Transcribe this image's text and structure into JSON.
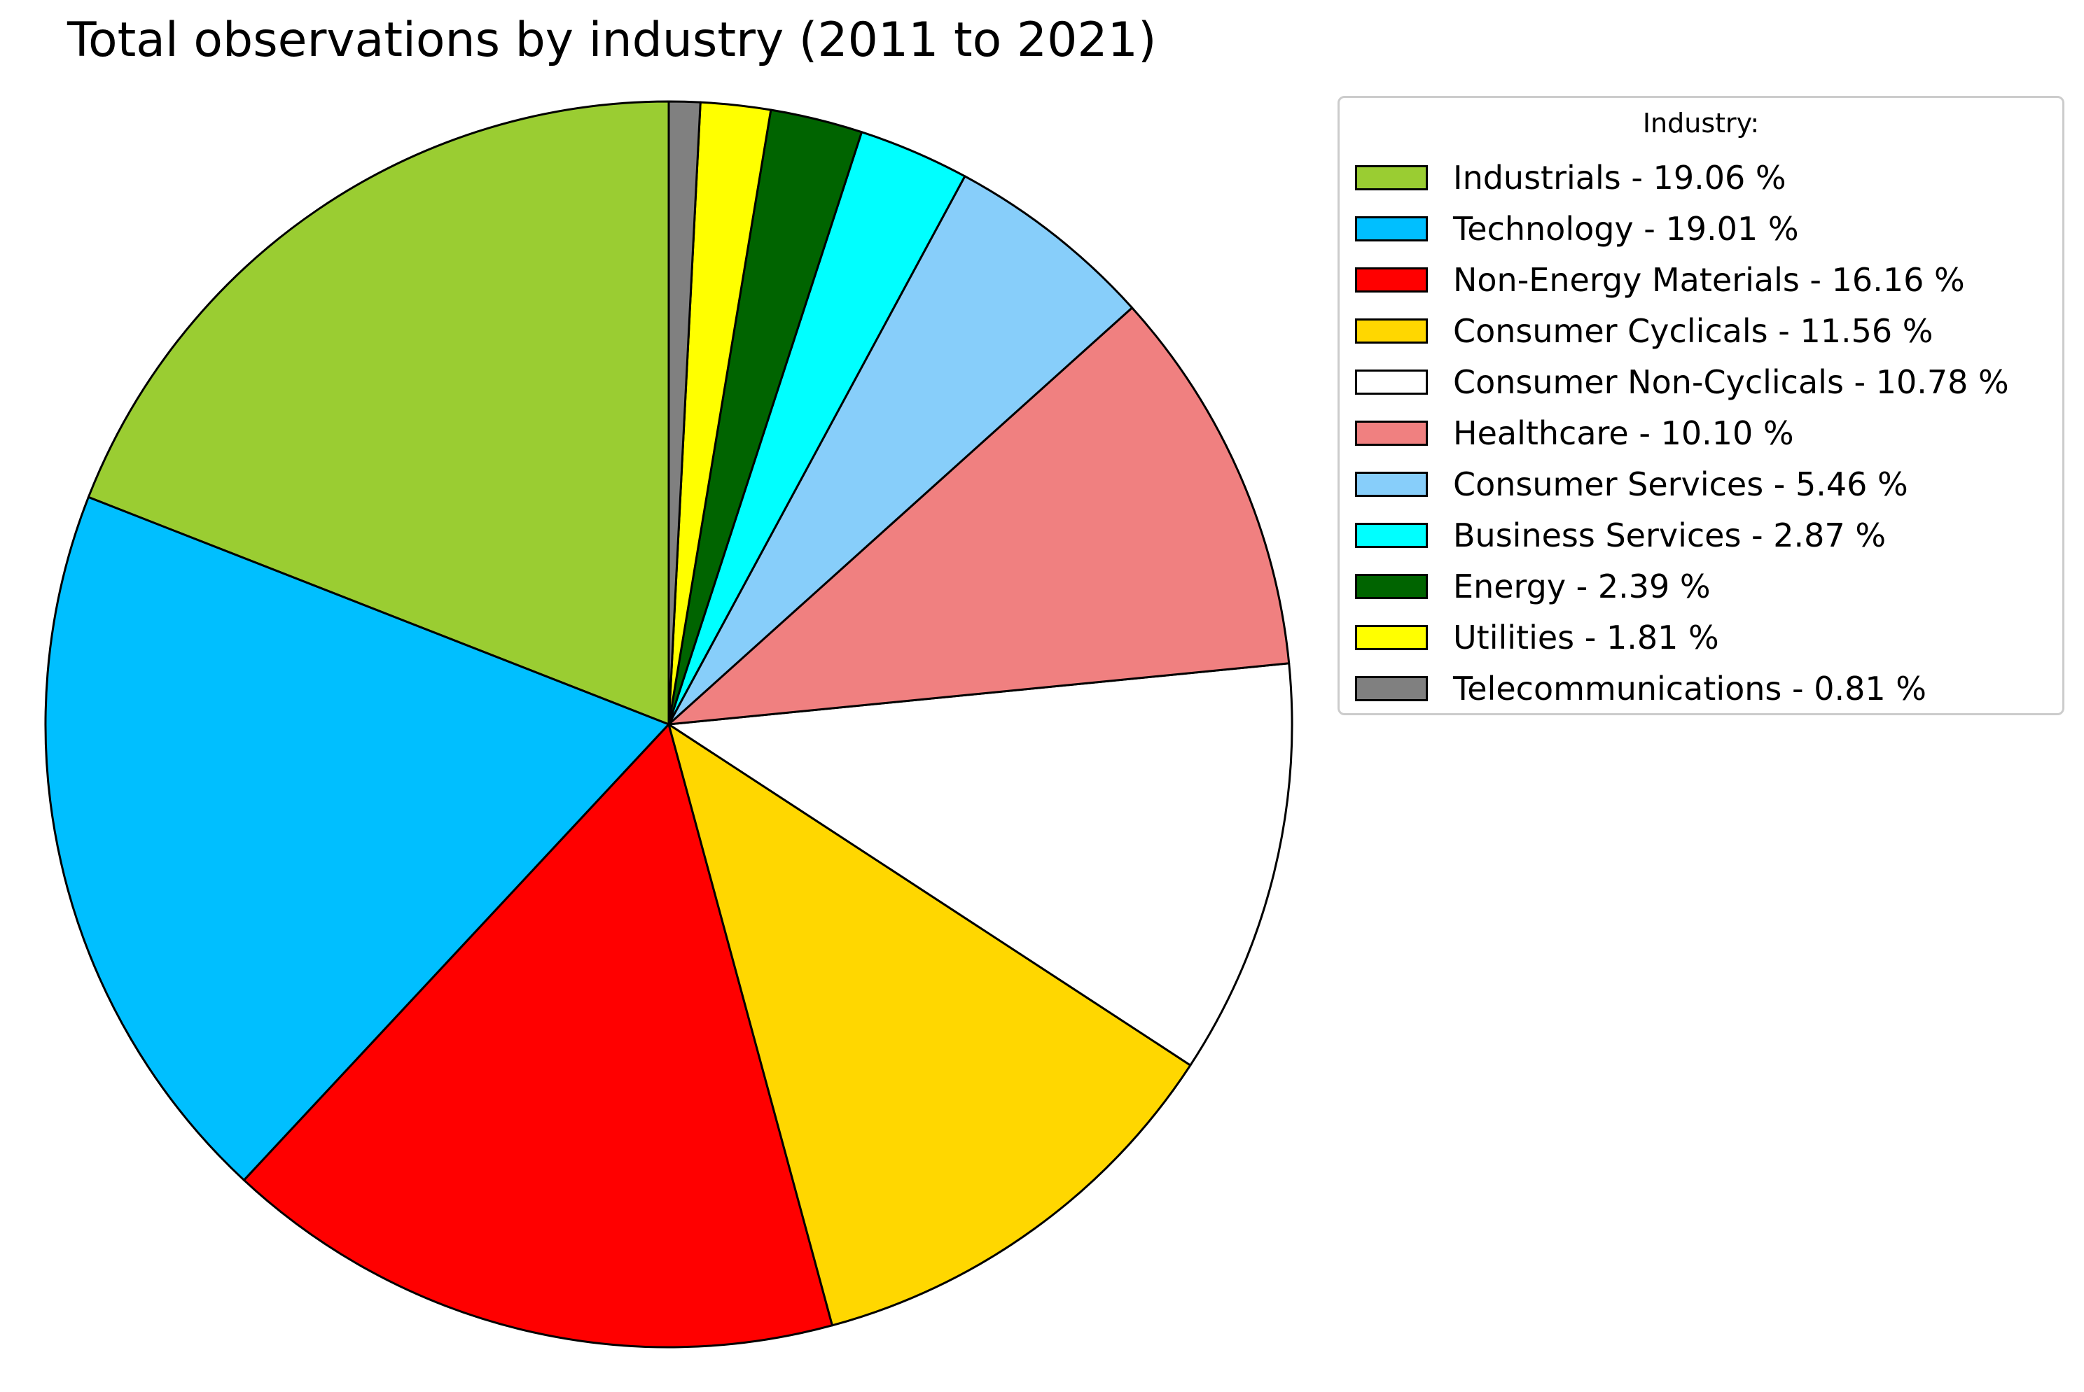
{
  "chart_data": {
    "type": "pie",
    "title": "Total observations by industry (2011 to 2021)",
    "legend": {
      "title": "Industry:",
      "placement": "right"
    },
    "start_angle_deg": 90,
    "direction": "counterclockwise",
    "slices": [
      {
        "label": "Industrials - 19.06 %",
        "value": 19.06,
        "color": "#9ACD32"
      },
      {
        "label": "Technology - 19.01 %",
        "value": 19.01,
        "color": "#00BFFF"
      },
      {
        "label": "Non-Energy Materials - 16.16 %",
        "value": 16.16,
        "color": "#FF0000"
      },
      {
        "label": "Consumer Cyclicals - 11.56 %",
        "value": 11.56,
        "color": "#FFD700"
      },
      {
        "label": "Consumer Non-Cyclicals - 10.78 %",
        "value": 10.78,
        "color": "#FFFFFF"
      },
      {
        "label": "Healthcare - 10.10 %",
        "value": 10.1,
        "color": "#F08080"
      },
      {
        "label": "Consumer Services - 5.46 %",
        "value": 5.46,
        "color": "#87CEFA"
      },
      {
        "label": "Business Services - 2.87 %",
        "value": 2.87,
        "color": "#00FFFF"
      },
      {
        "label": "Energy - 2.39 %",
        "value": 2.39,
        "color": "#006400"
      },
      {
        "label": "Utilities - 1.81 %",
        "value": 1.81,
        "color": "#FFFF00"
      },
      {
        "label": "Telecommunications - 0.81 %",
        "value": 0.81,
        "color": "#808080"
      }
    ]
  }
}
